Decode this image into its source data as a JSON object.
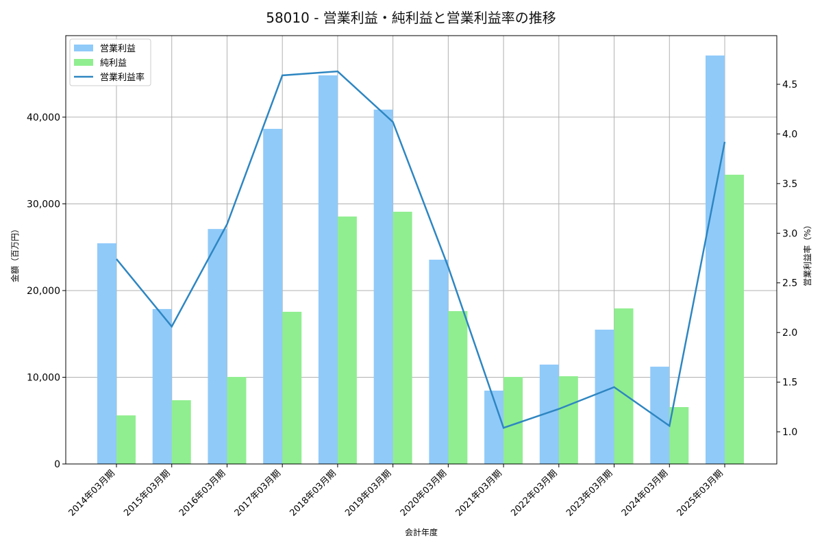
{
  "chart_data": {
    "type": "bar",
    "title": "58010 - 営業利益・純利益と営業利益率の推移",
    "xlabel": "会計年度",
    "ylabel": "金額（百万円）",
    "ylabel_right": "営業利益率（%）",
    "categories": [
      "2014年03月期",
      "2015年03月期",
      "2016年03月期",
      "2017年03月期",
      "2018年03月期",
      "2019年03月期",
      "2020年03月期",
      "2021年03月期",
      "2022年03月期",
      "2023年03月期",
      "2024年03月期",
      "2025年03月期"
    ],
    "series": [
      {
        "name": "営業利益",
        "type": "bar",
        "axis": "left",
        "color": "#90caf9",
        "values": [
          25450,
          17870,
          27100,
          38650,
          44820,
          40870,
          23560,
          8460,
          11460,
          15490,
          11220,
          47110
        ]
      },
      {
        "name": "純利益",
        "type": "bar",
        "axis": "left",
        "color": "#90ee90",
        "values": [
          5600,
          7350,
          10040,
          17550,
          28540,
          29090,
          17630,
          10040,
          10120,
          17940,
          6560,
          33360
        ]
      },
      {
        "name": "営業利益率",
        "type": "line",
        "axis": "right",
        "color": "#2e86c1",
        "values": [
          2.74,
          2.06,
          3.09,
          4.59,
          4.63,
          4.12,
          2.66,
          1.04,
          1.23,
          1.45,
          1.06,
          3.92
        ]
      }
    ],
    "ylim": [
      0,
      49400
    ],
    "ylim_right": [
      0.676,
      4.99
    ],
    "yticks": [
      0,
      10000,
      20000,
      30000,
      40000
    ],
    "ytick_labels": [
      "0",
      "10,000",
      "20,000",
      "30,000",
      "40,000"
    ],
    "yticks_right": [
      1.0,
      1.5,
      2.0,
      2.5,
      3.0,
      3.5,
      4.0,
      4.5
    ],
    "ytick_labels_right": [
      "1.0",
      "1.5",
      "2.0",
      "2.5",
      "3.0",
      "3.5",
      "4.0",
      "4.5"
    ],
    "grid": true,
    "legend_position": "upper left",
    "legend": [
      "営業利益",
      "純利益",
      "営業利益率"
    ]
  }
}
